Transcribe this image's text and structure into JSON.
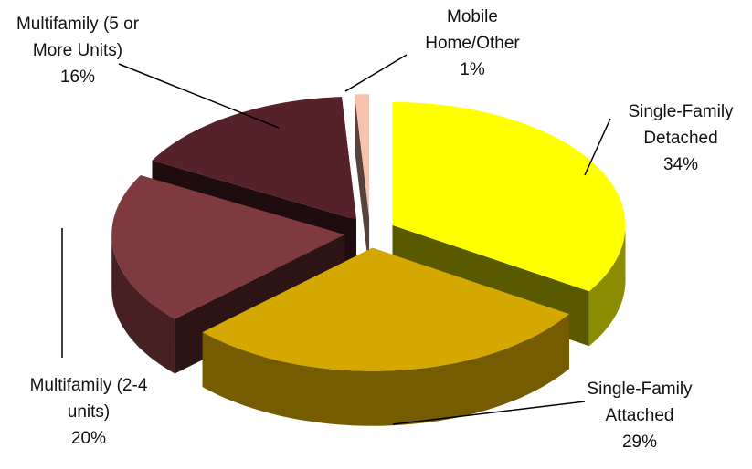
{
  "chart_data": {
    "type": "pie3d",
    "categories": [
      "Single-Family Detached",
      "Single-Family Attached",
      "Multifamily (2-4 units)",
      "Multifamily (5 or More Units)",
      "Mobile Home/Other"
    ],
    "values": [
      34,
      29,
      20,
      16,
      1
    ],
    "value_labels": [
      "34%",
      "29%",
      "20%",
      "16%",
      "1%"
    ],
    "colors": [
      "#ffff00",
      "#d4a800",
      "#7f3a40",
      "#56222a",
      "#f7c2ac"
    ]
  }
}
